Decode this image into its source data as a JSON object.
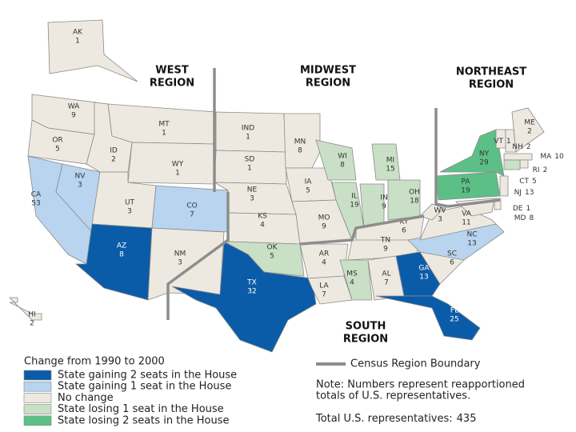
{
  "map": {
    "regions": [
      {
        "lines": [
          "WEST",
          "REGION"
        ]
      },
      {
        "lines": [
          "MIDWEST",
          "REGION"
        ]
      },
      {
        "lines": [
          "NORTHEAST",
          "REGION"
        ]
      },
      {
        "lines": [
          "SOUTH",
          "REGION"
        ]
      }
    ],
    "states": [
      {
        "abbr": "AK",
        "seats": 1,
        "color": "#ede9e0"
      },
      {
        "abbr": "WA",
        "seats": 9,
        "color": "#ede9e0"
      },
      {
        "abbr": "OR",
        "seats": 5,
        "color": "#ede9e0"
      },
      {
        "abbr": "CA",
        "seats": 53,
        "color": "#b8d4ee"
      },
      {
        "abbr": "NV",
        "seats": 3,
        "color": "#b8d4ee"
      },
      {
        "abbr": "ID",
        "seats": 2,
        "color": "#ede9e0"
      },
      {
        "abbr": "MT",
        "seats": 1,
        "color": "#ede9e0"
      },
      {
        "abbr": "WY",
        "seats": 1,
        "color": "#ede9e0"
      },
      {
        "abbr": "UT",
        "seats": 3,
        "color": "#ede9e0"
      },
      {
        "abbr": "CO",
        "seats": 7,
        "color": "#b8d4ee"
      },
      {
        "abbr": "AZ",
        "seats": 8,
        "color": "#0b5ca8"
      },
      {
        "abbr": "NM",
        "seats": 3,
        "color": "#ede9e0"
      },
      {
        "abbr": "HI",
        "seats": 2,
        "color": "#ede9e0"
      },
      {
        "abbr": "IND",
        "seats": 1,
        "color": "#ede9e0"
      },
      {
        "abbr": "SD",
        "seats": 1,
        "color": "#ede9e0"
      },
      {
        "abbr": "NE",
        "seats": 3,
        "color": "#ede9e0"
      },
      {
        "abbr": "KS",
        "seats": 4,
        "color": "#ede9e0"
      },
      {
        "abbr": "OK",
        "seats": 5,
        "color": "#c9e0c6"
      },
      {
        "abbr": "TX",
        "seats": 32,
        "color": "#0b5ca8"
      },
      {
        "abbr": "MN",
        "seats": 8,
        "color": "#ede9e0"
      },
      {
        "abbr": "IA",
        "seats": 5,
        "color": "#ede9e0"
      },
      {
        "abbr": "MO",
        "seats": 9,
        "color": "#ede9e0"
      },
      {
        "abbr": "AR",
        "seats": 4,
        "color": "#ede9e0"
      },
      {
        "abbr": "LA",
        "seats": 7,
        "color": "#ede9e0"
      },
      {
        "abbr": "WI",
        "seats": 8,
        "color": "#c9e0c6"
      },
      {
        "abbr": "IL",
        "seats": 19,
        "color": "#c9e0c6"
      },
      {
        "abbr": "MI",
        "seats": 15,
        "color": "#c9e0c6"
      },
      {
        "abbr": "IN",
        "seats": 9,
        "color": "#c9e0c6"
      },
      {
        "abbr": "OH",
        "seats": 18,
        "color": "#c9e0c6"
      },
      {
        "abbr": "KY",
        "seats": 6,
        "color": "#ede9e0"
      },
      {
        "abbr": "TN",
        "seats": 9,
        "color": "#ede9e0"
      },
      {
        "abbr": "MS",
        "seats": 4,
        "color": "#c9e0c6"
      },
      {
        "abbr": "AL",
        "seats": 7,
        "color": "#ede9e0"
      },
      {
        "abbr": "GA",
        "seats": 13,
        "color": "#0b5ca8"
      },
      {
        "abbr": "FL",
        "seats": 25,
        "color": "#0b5ca8"
      },
      {
        "abbr": "SC",
        "seats": 6,
        "color": "#ede9e0"
      },
      {
        "abbr": "NC",
        "seats": 13,
        "color": "#b8d4ee"
      },
      {
        "abbr": "VA",
        "seats": 11,
        "color": "#ede9e0"
      },
      {
        "abbr": "WV",
        "seats": 3,
        "color": "#ede9e0"
      },
      {
        "abbr": "PA",
        "seats": 19,
        "color": "#5cbf86"
      },
      {
        "abbr": "NY",
        "seats": 29,
        "color": "#5cbf86"
      },
      {
        "abbr": "VT",
        "seats": 1,
        "color": "#ede9e0"
      },
      {
        "abbr": "NH",
        "seats": 2,
        "color": "#ede9e0"
      },
      {
        "abbr": "ME",
        "seats": 2,
        "color": "#ede9e0"
      },
      {
        "abbr": "MA",
        "seats": 10,
        "color": "#ede9e0"
      },
      {
        "abbr": "RI",
        "seats": 2,
        "color": "#ede9e0"
      },
      {
        "abbr": "CT",
        "seats": 5,
        "color": "#c9e0c6"
      },
      {
        "abbr": "NJ",
        "seats": 13,
        "color": "#ede9e0"
      },
      {
        "abbr": "DE",
        "seats": 1,
        "color": "#ede9e0"
      },
      {
        "abbr": "MD",
        "seats": 8,
        "color": "#ede9e0"
      }
    ],
    "legend": {
      "title": "Change from 1990 to 2000",
      "items": [
        {
          "label": "State gaining 2 seats in the House",
          "color": "#0b5ca8"
        },
        {
          "label": "State gaining 1 seat in the House",
          "color": "#b8d4ee"
        },
        {
          "label": "No change",
          "color": "#ede9e0"
        },
        {
          "label": "State losing 1 seat in the House",
          "color": "#c9e0c6"
        },
        {
          "label": "State losing 2 seats in the House",
          "color": "#5cbf86"
        }
      ]
    },
    "boundary_legend": "Census Region Boundary",
    "note": [
      "Note:  Numbers represent reapportioned",
      "totals of U.S. representatives."
    ],
    "total": {
      "label": "Total U.S. representatives:",
      "value": 435
    }
  }
}
